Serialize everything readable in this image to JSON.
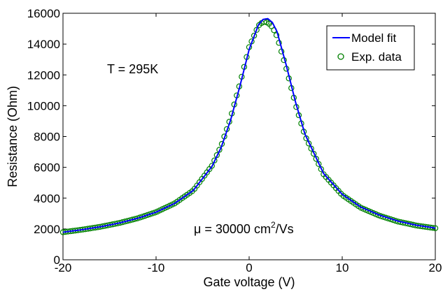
{
  "chart_data": {
    "type": "line",
    "xlabel": "Gate voltage (V)",
    "ylabel": "Resistance (Ohm)",
    "xlim": [
      -20,
      20
    ],
    "ylim": [
      0,
      16000
    ],
    "xticks": [
      -20,
      -10,
      0,
      10,
      20
    ],
    "xtick_labels": [
      "-20",
      "-10",
      "0",
      "10",
      "20"
    ],
    "yticks": [
      0,
      2000,
      4000,
      6000,
      8000,
      10000,
      12000,
      14000,
      16000
    ],
    "ytick_labels": [
      "0",
      "2000",
      "4000",
      "6000",
      "8000",
      "10000",
      "12000",
      "14000",
      "16000"
    ],
    "grid": false,
    "legend_position": "top-right",
    "series": [
      {
        "name": "Model fit",
        "style": "line",
        "color": "#0000ff",
        "x": [
          -20,
          -18,
          -16,
          -14,
          -12,
          -10,
          -8,
          -6,
          -4,
          -3,
          -2,
          -1,
          0,
          1,
          1.5,
          2,
          2.5,
          3,
          4,
          5,
          6,
          8,
          10,
          12,
          14,
          16,
          18,
          20
        ],
        "y": [
          1790,
          1950,
          2140,
          2380,
          2690,
          3090,
          3660,
          4500,
          6050,
          7300,
          9050,
          11250,
          13650,
          15250,
          15600,
          15650,
          15400,
          14800,
          12600,
          10200,
          8150,
          5600,
          4250,
          3420,
          2900,
          2510,
          2240,
          2060
        ]
      },
      {
        "name": "Exp. data",
        "style": "marker",
        "marker": "circle-open",
        "color": "#008000",
        "x": [
          -20,
          -18,
          -16,
          -14,
          -12,
          -10,
          -8,
          -6,
          -4,
          -3,
          -2,
          -1,
          0,
          1,
          1.5,
          2,
          2.5,
          3,
          4,
          5,
          6,
          8,
          10,
          12,
          14,
          16,
          18,
          20
        ],
        "y": [
          1790,
          1950,
          2140,
          2380,
          2690,
          3090,
          3660,
          4500,
          6100,
          7400,
          9200,
          11400,
          13800,
          15200,
          15450,
          15400,
          15100,
          14500,
          12400,
          10050,
          8050,
          5550,
          4200,
          3380,
          2860,
          2480,
          2220,
          2050
        ]
      }
    ],
    "legend": [
      {
        "label": "Model fit",
        "symbol": "line",
        "color": "#0000ff"
      },
      {
        "label": "Exp. data",
        "symbol": "circle-open",
        "color": "#008000"
      }
    ],
    "annotations": {
      "temperature": "T = 295K",
      "mobility_prefix": "μ = 30000 cm",
      "mobility_sup": "2",
      "mobility_suffix": "/Vs"
    }
  }
}
